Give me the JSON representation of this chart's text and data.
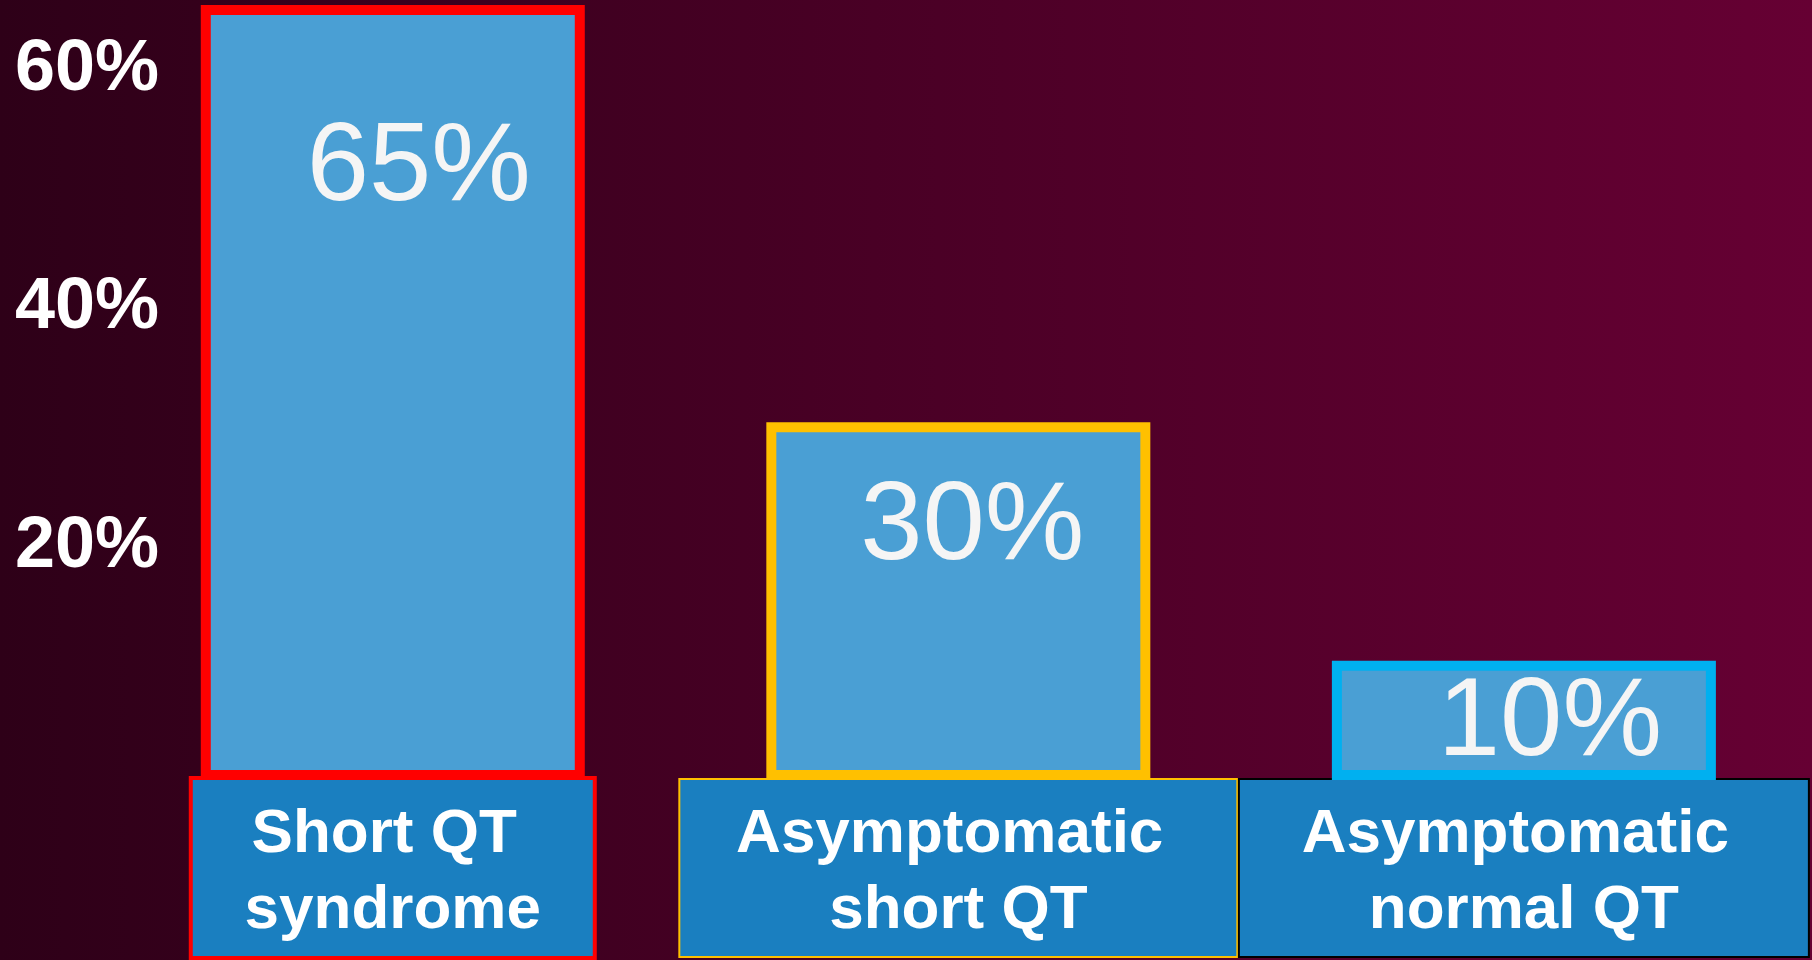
{
  "chart_data": {
    "type": "bar",
    "categories": [
      "Short QT syndrome",
      "Asymptomatic short QT",
      "Asymptomatic normal QT"
    ],
    "values": [
      65,
      30,
      10
    ],
    "color": "#4a9fd4",
    "value_labels": [
      "65%",
      "30%",
      "10%"
    ],
    "ylim": [
      0,
      65
    ],
    "yticks": [
      {
        "value": 20,
        "label": "20%"
      },
      {
        "value": 40,
        "label": "40%"
      },
      {
        "value": 60,
        "label": "60%"
      }
    ],
    "grid": false
  }
}
